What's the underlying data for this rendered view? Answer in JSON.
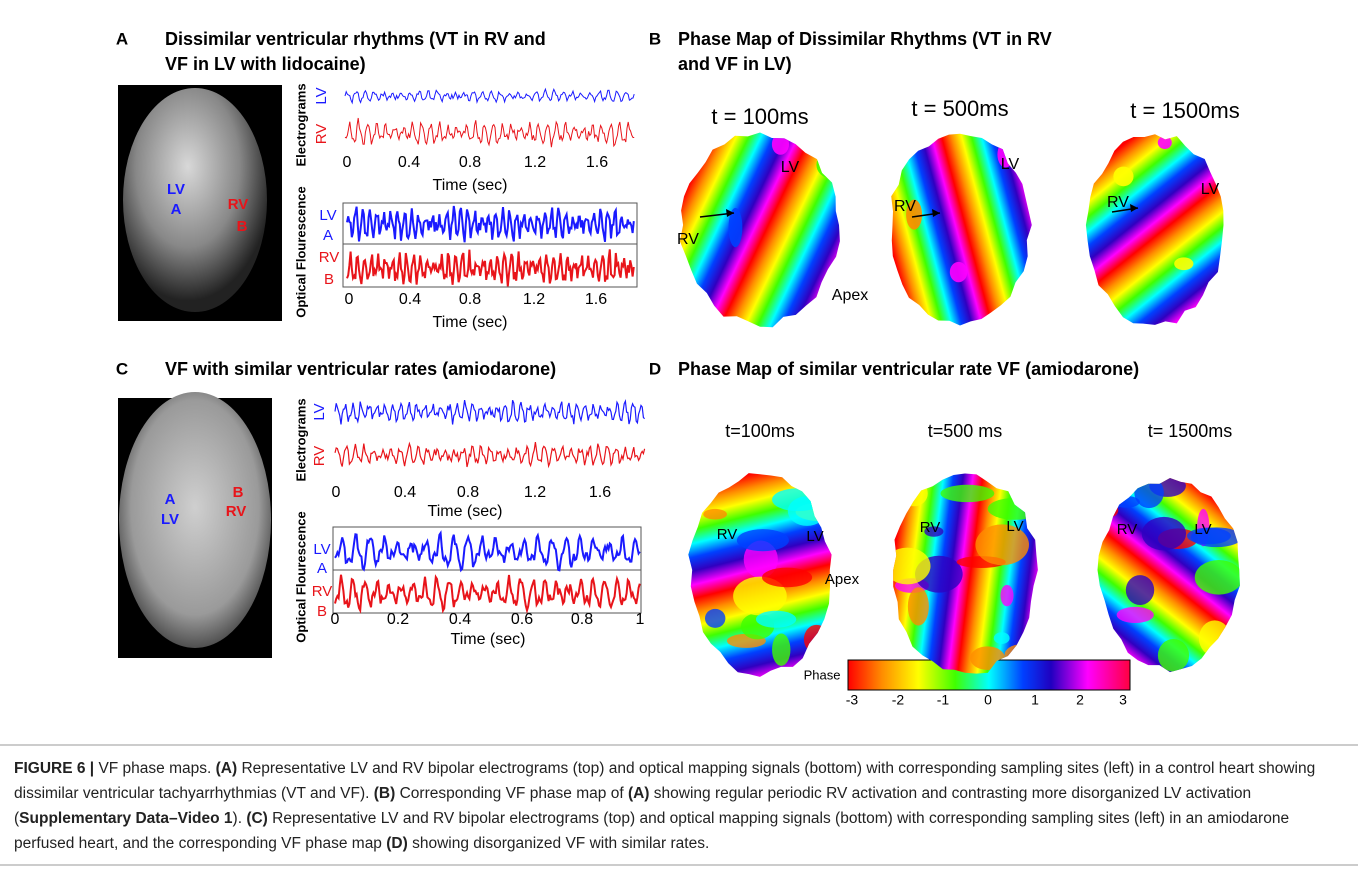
{
  "panel_a": {
    "letter": "A",
    "title_lines": [
      "Dissimilar ventricular rhythms (VT in RV and",
      "VF in LV with lidocaine)"
    ],
    "heart_labels": {
      "lv": "LV",
      "a": "A",
      "rv": "RV",
      "b": "B"
    },
    "electrograms": {
      "axis_label": "Electrograms",
      "lv": "LV",
      "rv": "RV",
      "ticks": [
        "0",
        "0.4",
        "0.8",
        "1.2",
        "1.6"
      ],
      "xlabel": "Time (sec)"
    },
    "optical": {
      "axis_label": "Optical Flourescence",
      "lv": "LV",
      "a": "A",
      "rv": "RV",
      "b": "B",
      "ticks": [
        "0",
        "0.4",
        "0.8",
        "1.2",
        "1.6"
      ],
      "xlabel": "Time (sec)"
    }
  },
  "panel_b": {
    "letter": "B",
    "title_lines": [
      "Phase Map of Dissimilar Rhythms (VT in RV",
      "and VF in LV)"
    ],
    "maps": [
      {
        "time": "t = 100ms",
        "lv": "LV",
        "rv": "RV",
        "apex": "Apex"
      },
      {
        "time": "t = 500ms",
        "lv": "LV",
        "rv": "RV"
      },
      {
        "time": "t = 1500ms",
        "lv": "LV",
        "rv": "RV"
      }
    ]
  },
  "panel_c": {
    "letter": "C",
    "title_lines": [
      "VF with similar ventricular rates (amiodarone)"
    ],
    "heart_labels": {
      "a": "A",
      "lv": "LV",
      "b": "B",
      "rv": "RV"
    },
    "electrograms": {
      "axis_label": "Electrograms",
      "lv": "LV",
      "rv": "RV",
      "ticks": [
        "0",
        "0.4",
        "0.8",
        "1.2",
        "1.6"
      ],
      "xlabel": "Time (sec)"
    },
    "optical": {
      "axis_label": "Optical Flourescence",
      "lv": "LV",
      "a": "A",
      "rv": "RV",
      "b": "B",
      "ticks": [
        "0",
        "0.2",
        "0.4",
        "0.6",
        "0.8",
        "1"
      ],
      "xlabel": "Time (sec)"
    }
  },
  "panel_d": {
    "letter": "D",
    "title_lines": [
      "Phase Map of similar ventricular rate VF (amiodarone)"
    ],
    "maps": [
      {
        "time": "t=100ms",
        "lv": "LV",
        "rv": "RV",
        "apex": "Apex"
      },
      {
        "time": "t=500 ms",
        "lv": "LV",
        "rv": "RV"
      },
      {
        "time": "t= 1500ms",
        "lv": "LV",
        "rv": "RV"
      }
    ],
    "colorbar": {
      "label": "Phase",
      "ticks": [
        "-3",
        "-2",
        "-1",
        "0",
        "1",
        "2",
        "3"
      ]
    }
  },
  "caption": [
    "FIGURE 6 |",
    " VF phase maps. ",
    "(A)",
    " Representative LV and RV bipolar electrograms (top) and optical mapping signals (bottom) with corresponding sampling sites (left) in a control heart showing dissimilar ventricular tachyarrhythmias (VT and VF). ",
    "(B)",
    " Corresponding VF phase map of ",
    "(A)",
    " showing regular periodic RV activation and contrasting more disorganized LV activation (",
    "Supplementary Data–Video 1",
    "). ",
    "(C)",
    " Representative LV and RV bipolar electrograms (top) and optical mapping signals (bottom) with corresponding sampling sites (left) in an amiodarone perfused heart, and the corresponding VF phase map ",
    "(D)",
    " showing disorganized VF with similar rates."
  ]
}
